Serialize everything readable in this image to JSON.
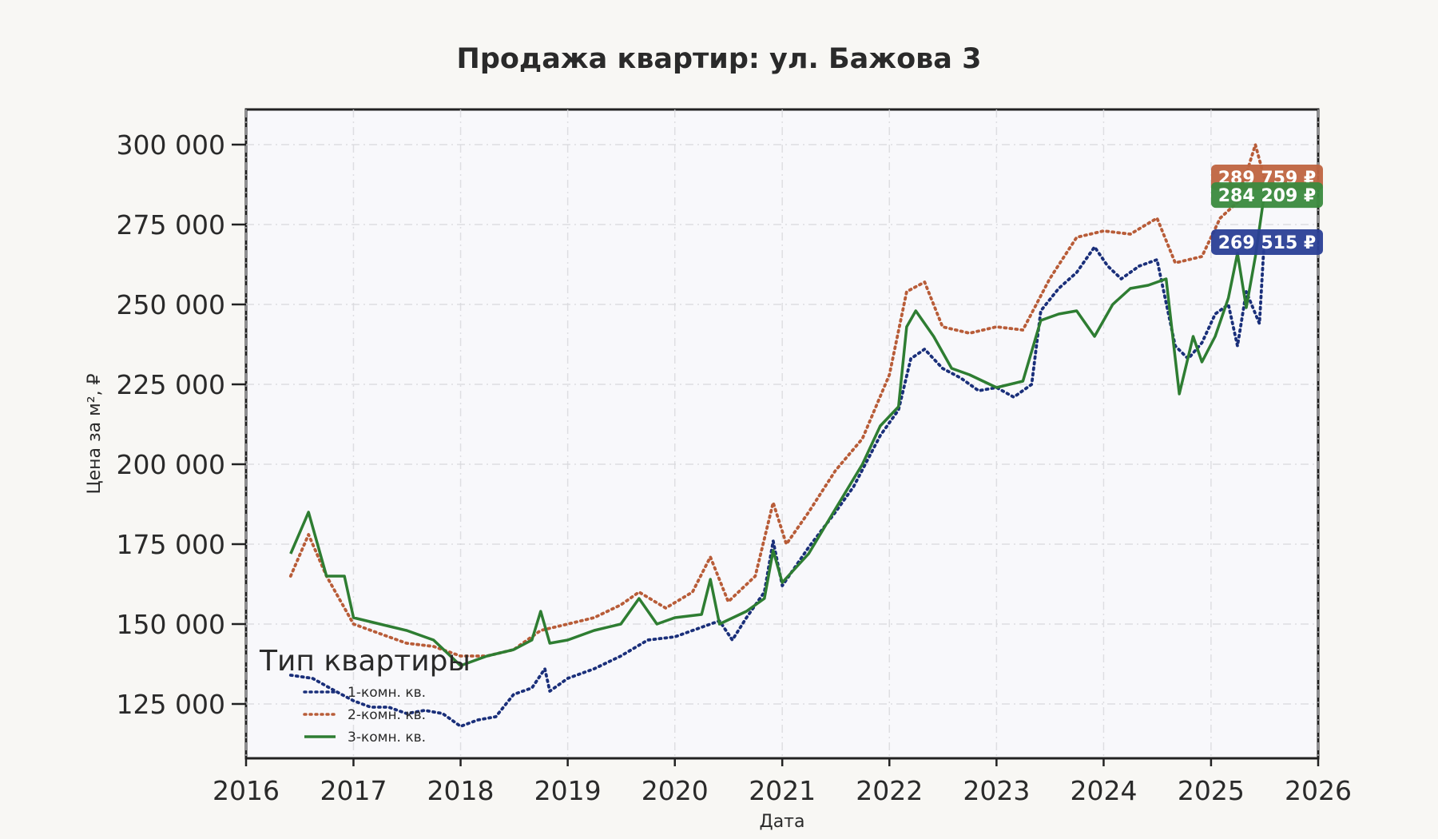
{
  "chart_data": {
    "type": "line",
    "title": "Продажа квартир: ул. Бажова 3",
    "xlabel": "Дата",
    "ylabel": "Цена за м², ₽",
    "xlim": [
      "2016-01-01",
      "2026-01-01"
    ],
    "ylim": [
      108000,
      311000
    ],
    "x_ticks": [
      "2016",
      "2017",
      "2018",
      "2019",
      "2020",
      "2021",
      "2022",
      "2023",
      "2024",
      "2025",
      "2026"
    ],
    "y_ticks": [
      125000,
      150000,
      175000,
      200000,
      225000,
      250000,
      275000,
      300000
    ],
    "y_tick_labels": [
      "125 000",
      "150 000",
      "175 000",
      "200 000",
      "225 000",
      "250 000",
      "275 000",
      "300 000"
    ],
    "grid": true,
    "legend": {
      "title": "Тип квартиры",
      "placement": "lower-left"
    },
    "series": [
      {
        "name": "1-комн. кв.",
        "color": "#1a2f7a",
        "style": "dotted",
        "end_label": "269 515 ₽",
        "label_bg": "#2a3f96",
        "points": [
          [
            "2016-06-01",
            134000
          ],
          [
            "2016-08-15",
            133000
          ],
          [
            "2016-11-01",
            129000
          ],
          [
            "2017-01-01",
            126000
          ],
          [
            "2017-03-01",
            124000
          ],
          [
            "2017-05-01",
            124000
          ],
          [
            "2017-07-01",
            122000
          ],
          [
            "2017-09-01",
            123000
          ],
          [
            "2017-11-01",
            122000
          ],
          [
            "2018-01-01",
            118000
          ],
          [
            "2018-03-01",
            120000
          ],
          [
            "2018-05-01",
            121000
          ],
          [
            "2018-07-01",
            128000
          ],
          [
            "2018-09-01",
            130000
          ],
          [
            "2018-10-15",
            136000
          ],
          [
            "2018-11-01",
            129000
          ],
          [
            "2019-01-01",
            133000
          ],
          [
            "2019-04-01",
            136000
          ],
          [
            "2019-07-01",
            140000
          ],
          [
            "2019-10-01",
            145000
          ],
          [
            "2020-01-01",
            146000
          ],
          [
            "2020-04-01",
            149000
          ],
          [
            "2020-06-01",
            151000
          ],
          [
            "2020-07-15",
            145000
          ],
          [
            "2020-09-01",
            152000
          ],
          [
            "2020-11-01",
            160000
          ],
          [
            "2020-12-01",
            176000
          ],
          [
            "2021-01-01",
            162000
          ],
          [
            "2021-04-01",
            174000
          ],
          [
            "2021-07-01",
            185000
          ],
          [
            "2021-09-01",
            193000
          ],
          [
            "2021-12-01",
            209000
          ],
          [
            "2022-02-01",
            217000
          ],
          [
            "2022-03-15",
            233000
          ],
          [
            "2022-05-01",
            236000
          ],
          [
            "2022-07-01",
            230000
          ],
          [
            "2022-09-01",
            227000
          ],
          [
            "2022-11-01",
            223000
          ],
          [
            "2023-01-01",
            224000
          ],
          [
            "2023-03-01",
            221000
          ],
          [
            "2023-05-01",
            225000
          ],
          [
            "2023-06-01",
            248000
          ],
          [
            "2023-08-01",
            255000
          ],
          [
            "2023-10-01",
            260000
          ],
          [
            "2023-12-01",
            268000
          ],
          [
            "2024-01-15",
            262000
          ],
          [
            "2024-03-01",
            258000
          ],
          [
            "2024-05-01",
            262000
          ],
          [
            "2024-07-01",
            264000
          ],
          [
            "2024-09-01",
            237000
          ],
          [
            "2024-10-15",
            233000
          ],
          [
            "2024-12-01",
            238000
          ],
          [
            "2025-01-15",
            247000
          ],
          [
            "2025-03-01",
            250000
          ],
          [
            "2025-04-01",
            237000
          ],
          [
            "2025-05-01",
            254000
          ],
          [
            "2025-06-15",
            244000
          ],
          [
            "2025-07-01",
            269515
          ]
        ]
      },
      {
        "name": "2-комн. кв.",
        "color": "#b85c38",
        "style": "dotted",
        "end_label": "289 759 ₽",
        "label_bg": "#bf6440",
        "points": [
          [
            "2016-06-01",
            165000
          ],
          [
            "2016-08-01",
            178000
          ],
          [
            "2016-10-01",
            165000
          ],
          [
            "2017-01-01",
            150000
          ],
          [
            "2017-04-01",
            147000
          ],
          [
            "2017-07-01",
            144000
          ],
          [
            "2017-10-01",
            143000
          ],
          [
            "2018-01-01",
            140000
          ],
          [
            "2018-04-01",
            140000
          ],
          [
            "2018-07-01",
            142000
          ],
          [
            "2018-10-01",
            148000
          ],
          [
            "2019-01-01",
            150000
          ],
          [
            "2019-04-01",
            152000
          ],
          [
            "2019-07-01",
            156000
          ],
          [
            "2019-09-01",
            160000
          ],
          [
            "2019-12-01",
            155000
          ],
          [
            "2020-03-01",
            160000
          ],
          [
            "2020-05-01",
            171000
          ],
          [
            "2020-07-01",
            157000
          ],
          [
            "2020-10-01",
            165000
          ],
          [
            "2020-12-01",
            188000
          ],
          [
            "2021-01-15",
            175000
          ],
          [
            "2021-04-01",
            185000
          ],
          [
            "2021-07-01",
            198000
          ],
          [
            "2021-10-01",
            208000
          ],
          [
            "2022-01-01",
            228000
          ],
          [
            "2022-03-01",
            254000
          ],
          [
            "2022-05-01",
            257000
          ],
          [
            "2022-07-01",
            243000
          ],
          [
            "2022-10-01",
            241000
          ],
          [
            "2023-01-01",
            243000
          ],
          [
            "2023-04-01",
            242000
          ],
          [
            "2023-07-01",
            258000
          ],
          [
            "2023-10-01",
            271000
          ],
          [
            "2024-01-01",
            273000
          ],
          [
            "2024-04-01",
            272000
          ],
          [
            "2024-07-01",
            277000
          ],
          [
            "2024-09-01",
            263000
          ],
          [
            "2024-12-01",
            265000
          ],
          [
            "2025-02-01",
            277000
          ],
          [
            "2025-04-01",
            282000
          ],
          [
            "2025-06-01",
            300000
          ],
          [
            "2025-07-01",
            289759
          ]
        ]
      },
      {
        "name": "3-комн. кв.",
        "color": "#2e7d32",
        "style": "solid",
        "end_label": "284 209 ₽",
        "label_bg": "#3a8a3e",
        "points": [
          [
            "2016-06-01",
            172000
          ],
          [
            "2016-08-01",
            185000
          ],
          [
            "2016-10-01",
            165000
          ],
          [
            "2016-12-01",
            165000
          ],
          [
            "2017-01-01",
            152000
          ],
          [
            "2017-04-01",
            150000
          ],
          [
            "2017-07-01",
            148000
          ],
          [
            "2017-10-01",
            145000
          ],
          [
            "2018-01-01",
            137000
          ],
          [
            "2018-04-01",
            140000
          ],
          [
            "2018-07-01",
            142000
          ],
          [
            "2018-09-01",
            145000
          ],
          [
            "2018-10-01",
            154000
          ],
          [
            "2018-11-01",
            144000
          ],
          [
            "2019-01-01",
            145000
          ],
          [
            "2019-04-01",
            148000
          ],
          [
            "2019-07-01",
            150000
          ],
          [
            "2019-09-01",
            158000
          ],
          [
            "2019-11-01",
            150000
          ],
          [
            "2020-01-01",
            152000
          ],
          [
            "2020-04-01",
            153000
          ],
          [
            "2020-05-01",
            164000
          ],
          [
            "2020-06-01",
            150000
          ],
          [
            "2020-09-01",
            154000
          ],
          [
            "2020-11-01",
            158000
          ],
          [
            "2020-12-01",
            173000
          ],
          [
            "2021-01-01",
            163000
          ],
          [
            "2021-04-01",
            172000
          ],
          [
            "2021-07-01",
            186000
          ],
          [
            "2021-10-01",
            200000
          ],
          [
            "2021-12-01",
            212000
          ],
          [
            "2022-02-01",
            218000
          ],
          [
            "2022-03-01",
            243000
          ],
          [
            "2022-04-01",
            248000
          ],
          [
            "2022-06-01",
            240000
          ],
          [
            "2022-08-01",
            230000
          ],
          [
            "2022-10-01",
            228000
          ],
          [
            "2023-01-01",
            224000
          ],
          [
            "2023-04-01",
            226000
          ],
          [
            "2023-06-01",
            245000
          ],
          [
            "2023-08-01",
            247000
          ],
          [
            "2023-10-01",
            248000
          ],
          [
            "2023-12-01",
            240000
          ],
          [
            "2024-02-01",
            250000
          ],
          [
            "2024-04-01",
            255000
          ],
          [
            "2024-06-01",
            256000
          ],
          [
            "2024-08-01",
            258000
          ],
          [
            "2024-09-15",
            222000
          ],
          [
            "2024-11-01",
            240000
          ],
          [
            "2024-12-01",
            232000
          ],
          [
            "2025-01-15",
            240000
          ],
          [
            "2025-03-01",
            252000
          ],
          [
            "2025-04-01",
            266000
          ],
          [
            "2025-05-01",
            249000
          ],
          [
            "2025-06-01",
            265000
          ],
          [
            "2025-07-01",
            284209
          ]
        ]
      }
    ]
  }
}
